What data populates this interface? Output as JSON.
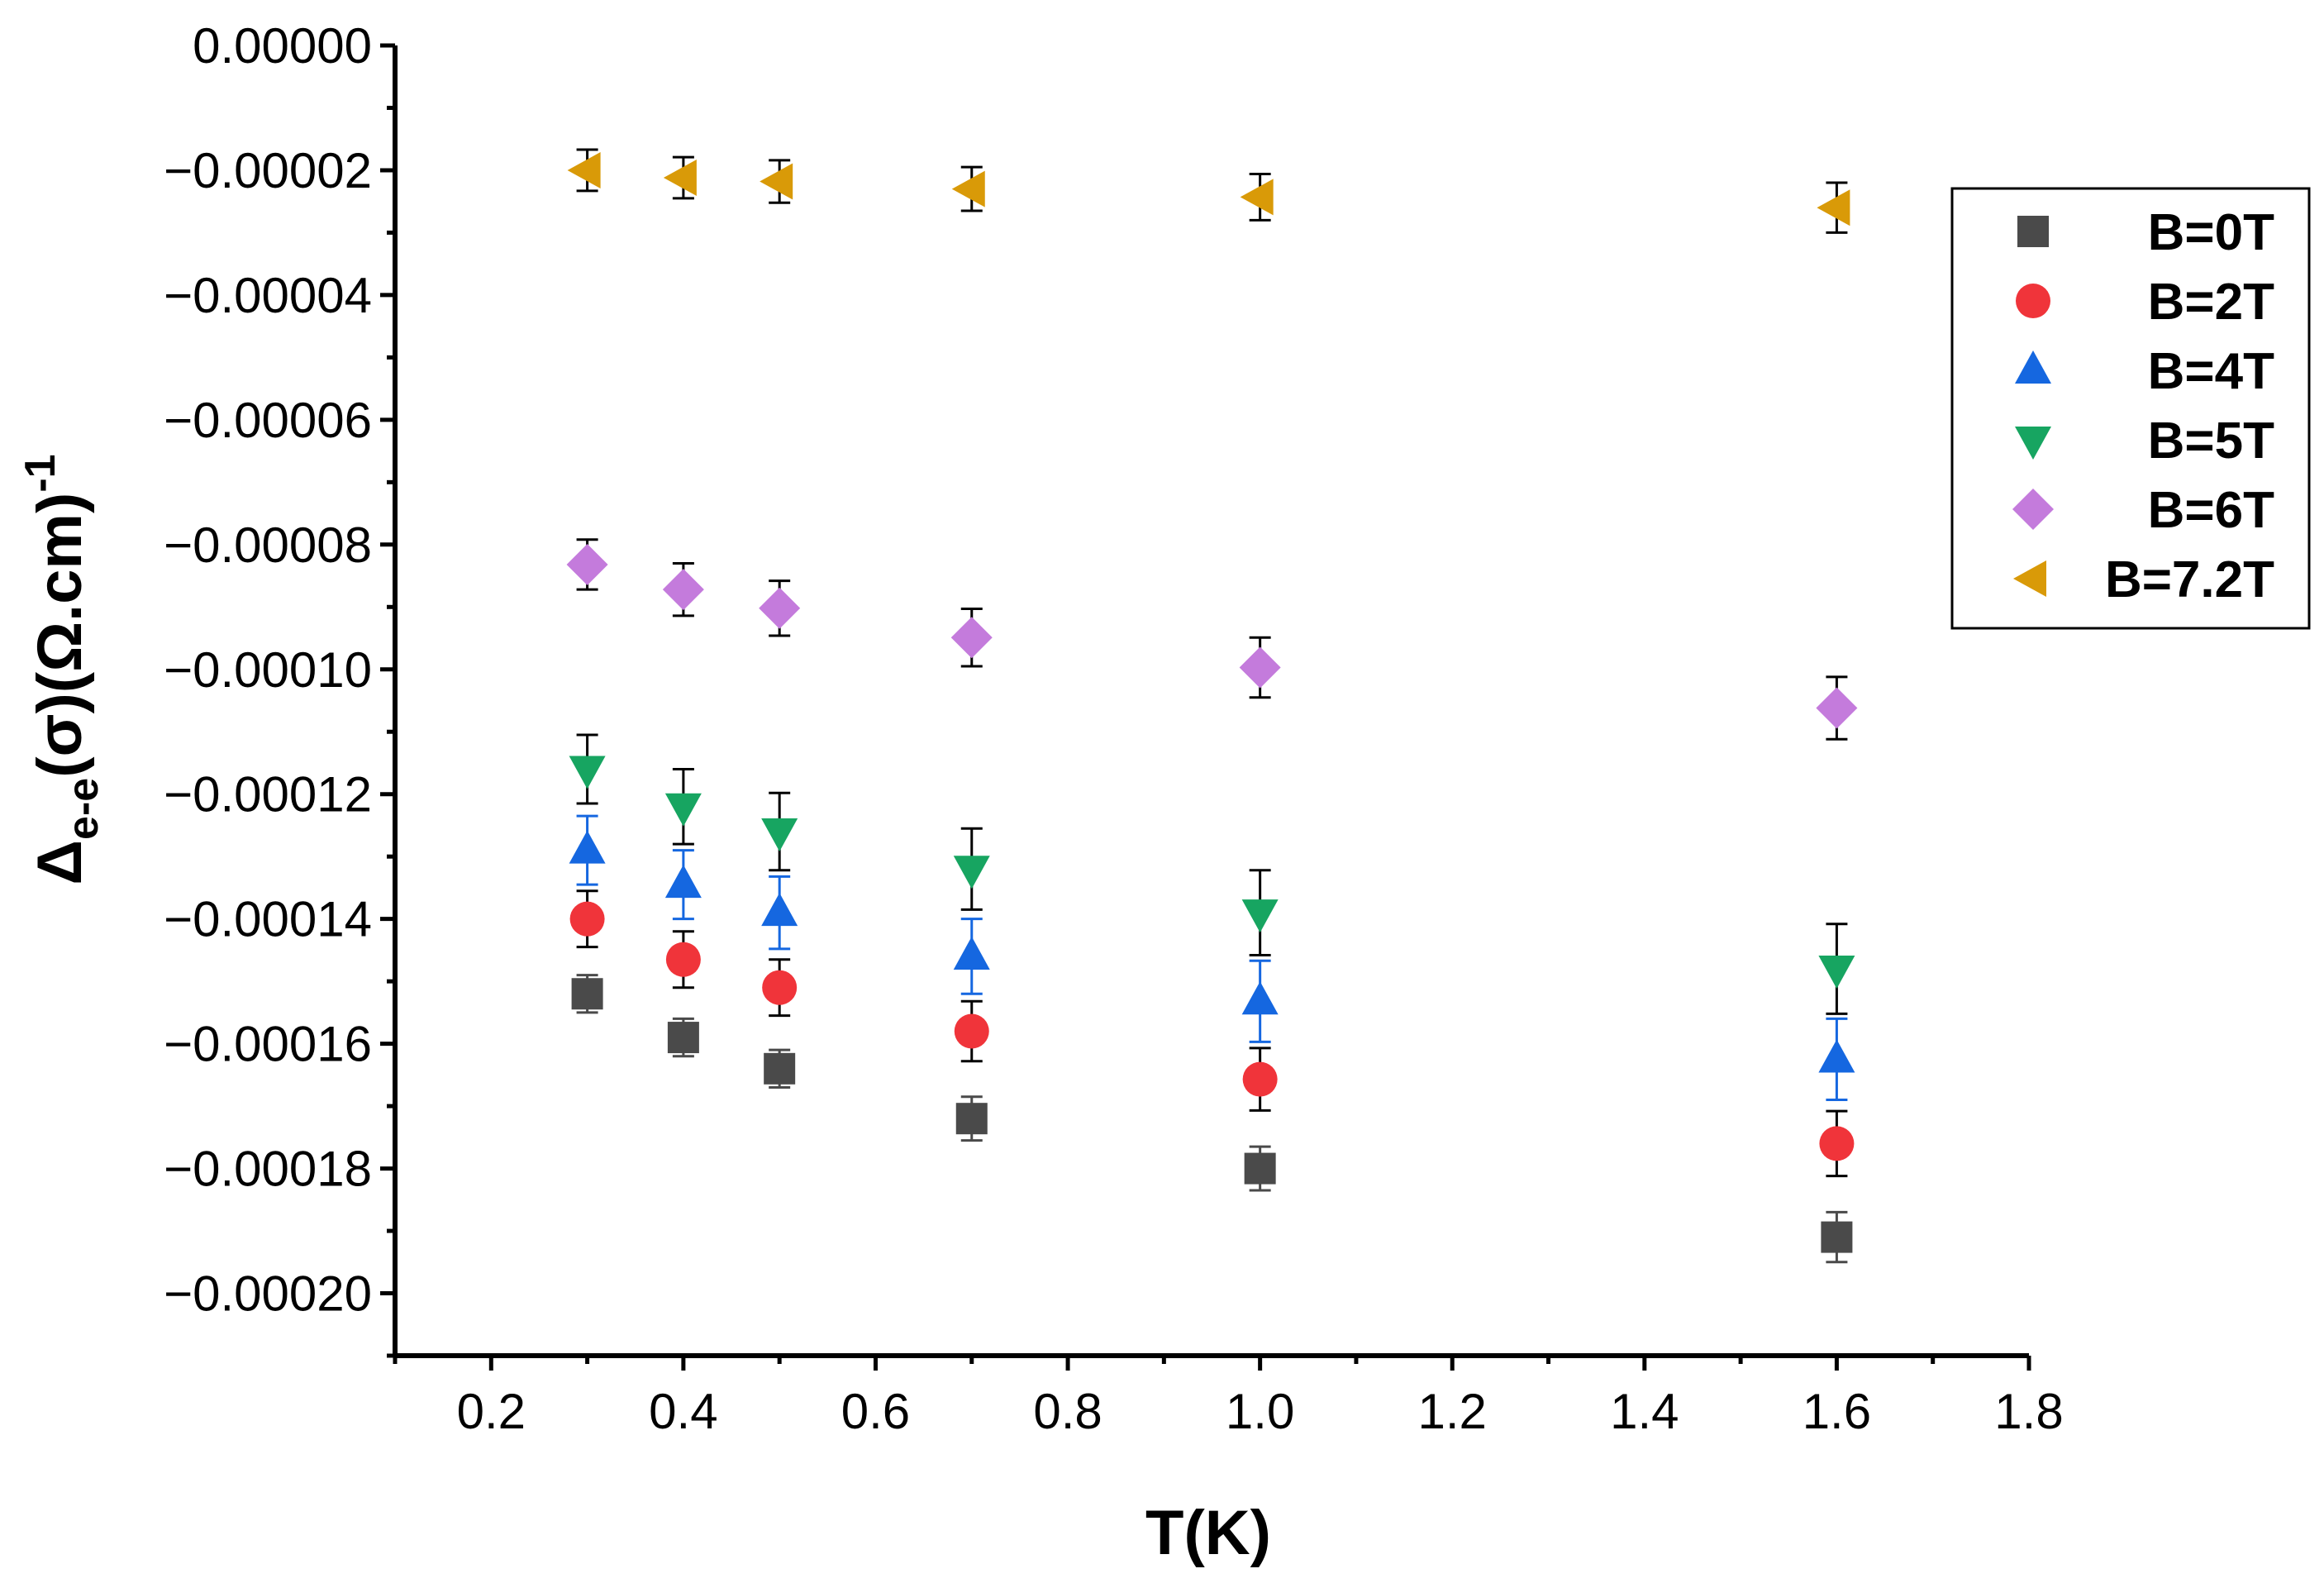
{
  "chart_data": {
    "type": "scatter",
    "title": "",
    "xlabel": "T(K)",
    "ylabel_main": "Δ",
    "ylabel_sub": "e-e",
    "ylabel_rest": "(σ)(Ω.cm)",
    "ylabel_sup": "-1",
    "xlim": [
      0.1,
      1.8
    ],
    "ylim": [
      -0.00021,
      0.0
    ],
    "x_ticks": [
      0.2,
      0.4,
      0.6,
      0.8,
      1.0,
      1.2,
      1.4,
      1.6,
      1.8
    ],
    "x_tick_labels": [
      "0.2",
      "0.4",
      "0.6",
      "0.8",
      "1.0",
      "1.2",
      "1.4",
      "1.6",
      "1.8"
    ],
    "y_ticks": [
      0.0,
      -2e-05,
      -4e-05,
      -6e-05,
      -8e-05,
      -0.0001,
      -0.00012,
      -0.00014,
      -0.00016,
      -0.00018,
      -0.0002
    ],
    "y_tick_labels": [
      "0.00000",
      "−0.00002",
      "−0.00004",
      "−0.00006",
      "−0.00008",
      "−0.00010",
      "−0.00012",
      "−0.00014",
      "−0.00016",
      "−0.00018",
      "−0.00020"
    ],
    "grid": false,
    "legend_position": "top-right",
    "x": [
      0.3,
      0.4,
      0.5,
      0.7,
      1.0,
      1.6
    ],
    "series": [
      {
        "name": "B=0T",
        "marker": "square",
        "color": "#4a4a4a",
        "err_color": "#4a4a4a",
        "values": [
          -0.000152,
          -0.000159,
          -0.000164,
          -0.000172,
          -0.00018,
          -0.000191
        ],
        "errors": [
          3e-06,
          3e-06,
          3e-06,
          3.5e-06,
          3.5e-06,
          4e-06
        ]
      },
      {
        "name": "B=2T",
        "marker": "circle",
        "color": "#f0343a",
        "err_color": "#000000",
        "values": [
          -0.00014,
          -0.0001465,
          -0.000151,
          -0.000158,
          -0.0001657,
          -0.000176
        ],
        "errors": [
          4.5e-06,
          4.5e-06,
          4.5e-06,
          4.8e-06,
          5e-06,
          5.2e-06
        ]
      },
      {
        "name": "B=4T",
        "marker": "triangle-up",
        "color": "#1567e0",
        "err_color": "#1567e0",
        "values": [
          -0.000129,
          -0.0001345,
          -0.000139,
          -0.000146,
          -0.0001532,
          -0.0001625
        ],
        "errors": [
          5.5e-06,
          5.5e-06,
          5.8e-06,
          6e-06,
          6.5e-06,
          6.5e-06
        ]
      },
      {
        "name": "B=5T",
        "marker": "triangle-down",
        "color": "#17a561",
        "err_color": "#000000",
        "values": [
          -0.000116,
          -0.000122,
          -0.000126,
          -0.000132,
          -0.000139,
          -0.000148
        ],
        "errors": [
          5.5e-06,
          6e-06,
          6.2e-06,
          6.5e-06,
          6.8e-06,
          7.2e-06
        ]
      },
      {
        "name": "B=6T",
        "marker": "diamond",
        "color": "#c47bdc",
        "err_color": "#000000",
        "values": [
          -8.32e-05,
          -8.72e-05,
          -9.02e-05,
          -9.49e-05,
          -9.97e-05,
          -0.0001062
        ],
        "errors": [
          4e-06,
          4.2e-06,
          4.4e-06,
          4.6e-06,
          4.8e-06,
          5e-06
        ]
      },
      {
        "name": "B=7.2T",
        "marker": "triangle-left",
        "color": "#d99a08",
        "err_color": "#000000",
        "values": [
          -2e-05,
          -2.12e-05,
          -2.18e-05,
          -2.3e-05,
          -2.43e-05,
          -2.6e-05
        ],
        "errors": [
          3.3e-06,
          3.3e-06,
          3.4e-06,
          3.5e-06,
          3.7e-06,
          4e-06
        ]
      }
    ]
  }
}
